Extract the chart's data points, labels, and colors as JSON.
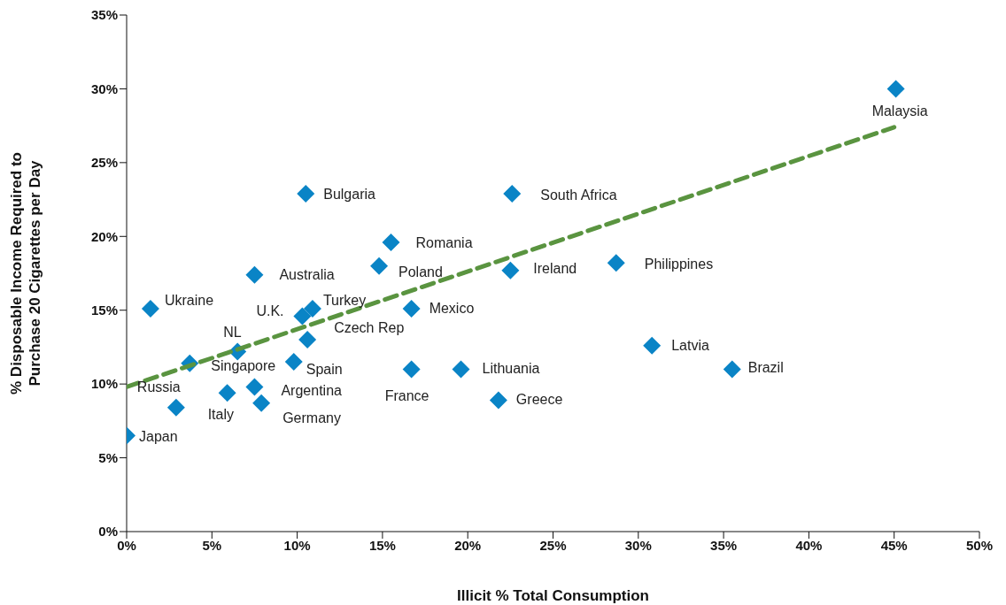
{
  "chart_data": {
    "type": "scatter",
    "xlabel": "Illicit % Total Consumption",
    "ylabel": "% Disposable Income Required to Purchase 20 Cigarettes per Day",
    "xlim": [
      0,
      50
    ],
    "ylim": [
      0,
      35
    ],
    "xticks": [
      {
        "value": 0,
        "label": "0%"
      },
      {
        "value": 5,
        "label": "5%"
      },
      {
        "value": 10,
        "label": "10%"
      },
      {
        "value": 15,
        "label": "15%"
      },
      {
        "value": 20,
        "label": "20%"
      },
      {
        "value": 25,
        "label": "25%"
      },
      {
        "value": 30,
        "label": "30%"
      },
      {
        "value": 35,
        "label": "35%"
      },
      {
        "value": 40,
        "label": "40%"
      },
      {
        "value": 45,
        "label": "45%"
      },
      {
        "value": 50,
        "label": "50%"
      }
    ],
    "yticks": [
      {
        "value": 0,
        "label": "0%"
      },
      {
        "value": 5,
        "label": "5%"
      },
      {
        "value": 10,
        "label": "10%"
      },
      {
        "value": 15,
        "label": "15%"
      },
      {
        "value": 20,
        "label": "20%"
      },
      {
        "value": 25,
        "label": "25%"
      },
      {
        "value": 30,
        "label": "30%"
      },
      {
        "value": 35,
        "label": "35%"
      }
    ],
    "grid": false,
    "legend": false,
    "series": [
      {
        "type": "scatter",
        "color": "#0a84c6",
        "marker": "diamond",
        "x": [
          0,
          1.4,
          2.9,
          3.7,
          6.5,
          5.9,
          7.5,
          7.5,
          7.9,
          9.8,
          10.3,
          10.9,
          10.6,
          10.5,
          15.5,
          14.8,
          16.7,
          16.7,
          19.6,
          21.8,
          22.6,
          22.5,
          28.7,
          30.8,
          35.5,
          45.1
        ],
        "values": [
          6.5,
          15.1,
          8.4,
          11.4,
          12.2,
          9.4,
          17.4,
          9.8,
          8.7,
          11.5,
          14.6,
          15.1,
          13.0,
          22.9,
          19.6,
          18.0,
          15.1,
          11.0,
          11.0,
          8.9,
          22.9,
          17.7,
          18.2,
          12.6,
          11.0,
          30.0
        ]
      },
      {
        "type": "line",
        "color": "#5a9440",
        "line_style": "dashed",
        "marker": "none",
        "x": [
          0,
          45.0
        ],
        "values": [
          9.8,
          27.4
        ]
      }
    ],
    "annotations": [
      {
        "text": "Japan",
        "x": 0,
        "y": 6.5
      },
      {
        "text": "Ukraine",
        "x": 1.4,
        "y": 15.1
      },
      {
        "text": "Russia",
        "x": 2.9,
        "y": 8.4
      },
      {
        "text": "Singapore",
        "x": 3.7,
        "y": 11.4
      },
      {
        "text": "NL",
        "x": 6.5,
        "y": 12.2
      },
      {
        "text": "Italy",
        "x": 5.9,
        "y": 9.4
      },
      {
        "text": "Australia",
        "x": 7.5,
        "y": 17.4
      },
      {
        "text": "Argentina",
        "x": 7.5,
        "y": 9.8
      },
      {
        "text": "Germany",
        "x": 7.9,
        "y": 8.7
      },
      {
        "text": "Spain",
        "x": 9.8,
        "y": 11.5
      },
      {
        "text": "U.K.",
        "x": 10.3,
        "y": 14.6
      },
      {
        "text": "Turkey",
        "x": 10.9,
        "y": 15.1
      },
      {
        "text": "Czech Rep",
        "x": 10.6,
        "y": 13.0
      },
      {
        "text": "Bulgaria",
        "x": 10.5,
        "y": 22.9
      },
      {
        "text": "Romania",
        "x": 15.5,
        "y": 19.6
      },
      {
        "text": "Poland",
        "x": 14.8,
        "y": 18.0
      },
      {
        "text": "Mexico",
        "x": 16.7,
        "y": 15.1
      },
      {
        "text": "France",
        "x": 16.7,
        "y": 11.0
      },
      {
        "text": "Lithuania",
        "x": 19.6,
        "y": 11.0
      },
      {
        "text": "Greece",
        "x": 21.8,
        "y": 8.9
      },
      {
        "text": "South Africa",
        "x": 22.6,
        "y": 22.9
      },
      {
        "text": "Ireland",
        "x": 22.5,
        "y": 17.7
      },
      {
        "text": "Philippines",
        "x": 28.7,
        "y": 18.2
      },
      {
        "text": "Latvia",
        "x": 30.8,
        "y": 12.6
      },
      {
        "text": "Brazil",
        "x": 35.5,
        "y": 11.0
      },
      {
        "text": "Malaysia",
        "x": 45.1,
        "y": 30.0
      }
    ]
  }
}
